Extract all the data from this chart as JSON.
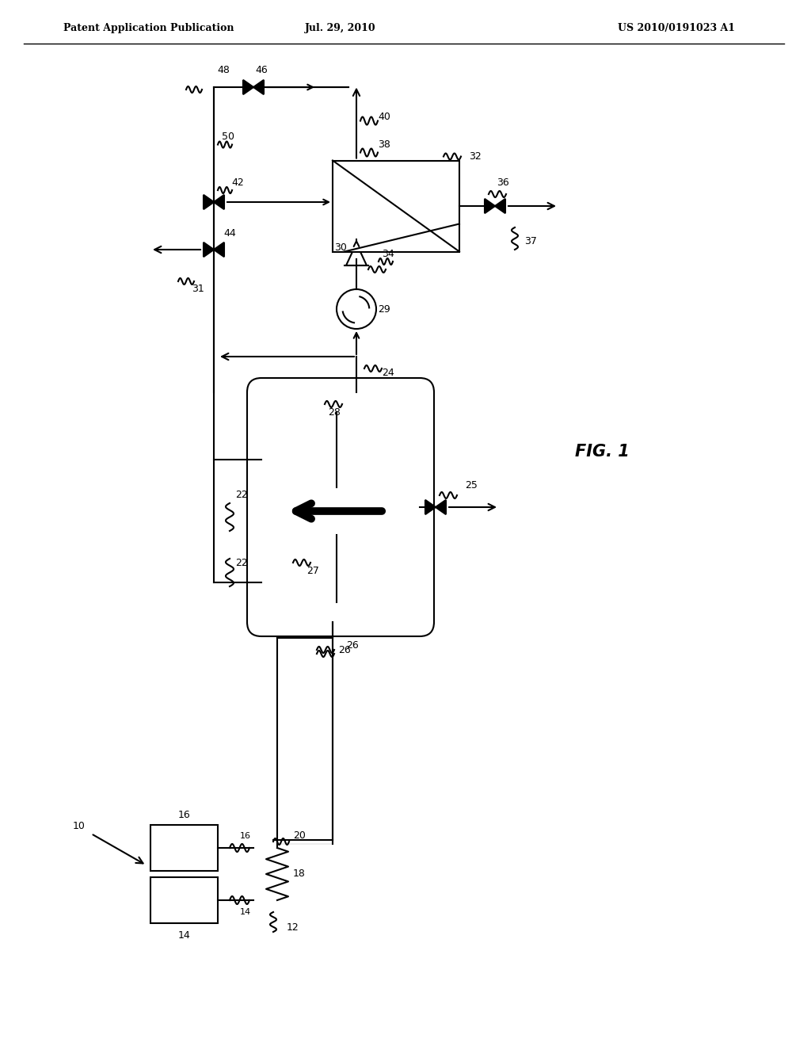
{
  "title_left": "Patent Application Publication",
  "title_mid": "Jul. 29, 2010",
  "title_right": "US 2010/0191023 A1",
  "fig_label": "FIG. 1",
  "background": "#ffffff",
  "line_color": "#000000",
  "text_color": "#000000"
}
